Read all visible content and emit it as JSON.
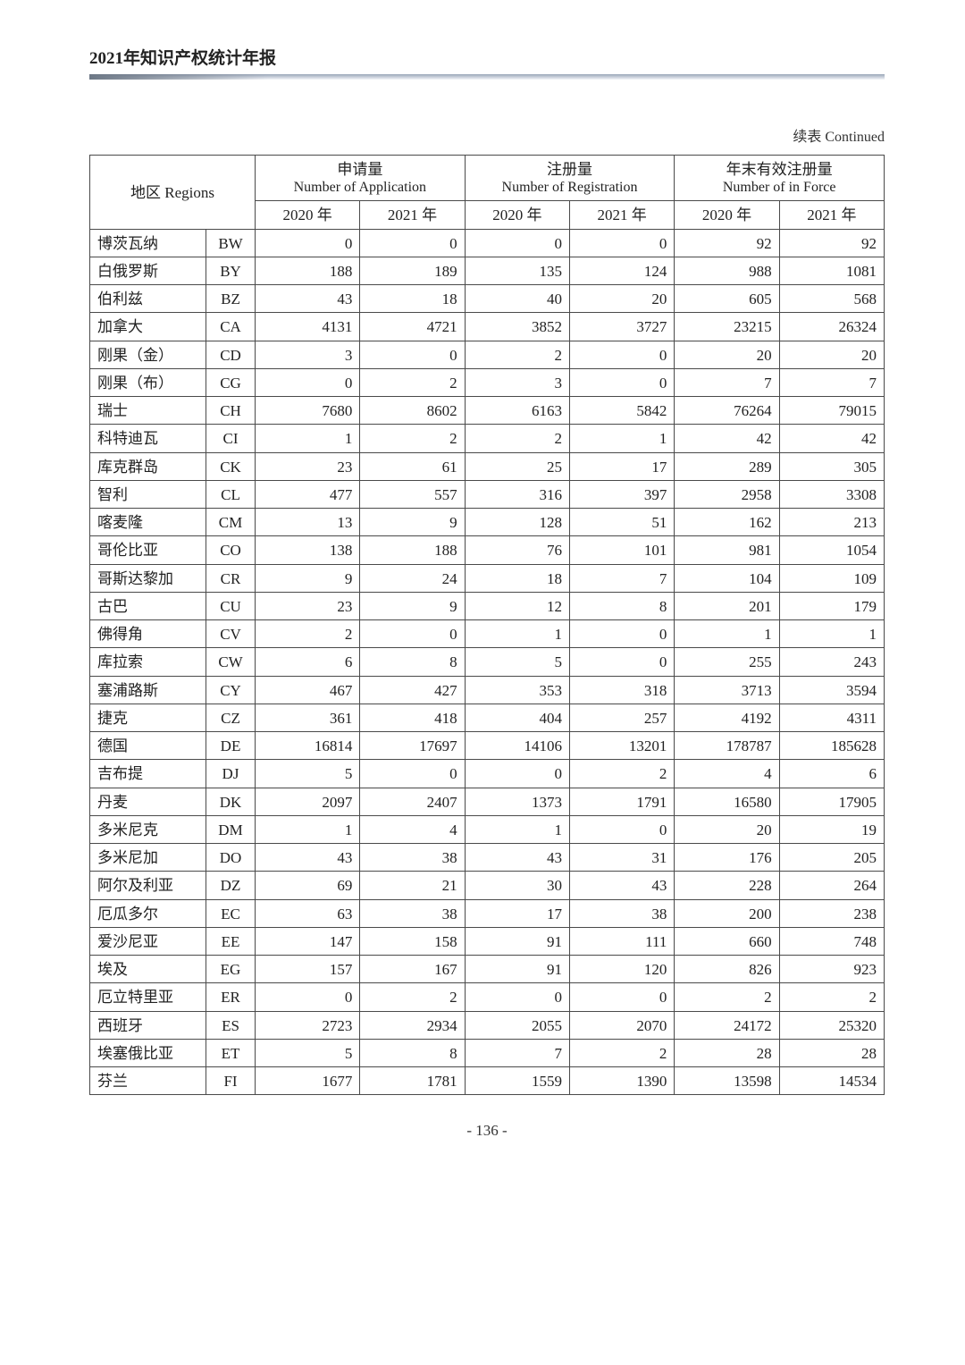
{
  "header": {
    "title": "2021年知识产权统计年报"
  },
  "continued_label": "续表 Continued",
  "table": {
    "header": {
      "regions_cn": "地区",
      "regions_en": "Regions",
      "application_cn": "申请量",
      "application_en": "Number of Application",
      "registration_cn": "注册量",
      "registration_en": "Number of Registration",
      "inforce_cn": "年末有效注册量",
      "inforce_en": "Number of in Force",
      "y2020": "2020 年",
      "y2021": "2021 年"
    },
    "rows": [
      {
        "name": "博茨瓦纳",
        "code": "BW",
        "app2020": "0",
        "app2021": "0",
        "reg2020": "0",
        "reg2021": "0",
        "force2020": "92",
        "force2021": "92"
      },
      {
        "name": "白俄罗斯",
        "code": "BY",
        "app2020": "188",
        "app2021": "189",
        "reg2020": "135",
        "reg2021": "124",
        "force2020": "988",
        "force2021": "1081"
      },
      {
        "name": "伯利兹",
        "code": "BZ",
        "app2020": "43",
        "app2021": "18",
        "reg2020": "40",
        "reg2021": "20",
        "force2020": "605",
        "force2021": "568"
      },
      {
        "name": "加拿大",
        "code": "CA",
        "app2020": "4131",
        "app2021": "4721",
        "reg2020": "3852",
        "reg2021": "3727",
        "force2020": "23215",
        "force2021": "26324"
      },
      {
        "name": "刚果（金）",
        "code": "CD",
        "app2020": "3",
        "app2021": "0",
        "reg2020": "2",
        "reg2021": "0",
        "force2020": "20",
        "force2021": "20"
      },
      {
        "name": "刚果（布）",
        "code": "CG",
        "app2020": "0",
        "app2021": "2",
        "reg2020": "3",
        "reg2021": "0",
        "force2020": "7",
        "force2021": "7"
      },
      {
        "name": "瑞士",
        "code": "CH",
        "app2020": "7680",
        "app2021": "8602",
        "reg2020": "6163",
        "reg2021": "5842",
        "force2020": "76264",
        "force2021": "79015"
      },
      {
        "name": "科特迪瓦",
        "code": "CI",
        "app2020": "1",
        "app2021": "2",
        "reg2020": "2",
        "reg2021": "1",
        "force2020": "42",
        "force2021": "42"
      },
      {
        "name": "库克群岛",
        "code": "CK",
        "app2020": "23",
        "app2021": "61",
        "reg2020": "25",
        "reg2021": "17",
        "force2020": "289",
        "force2021": "305"
      },
      {
        "name": "智利",
        "code": "CL",
        "app2020": "477",
        "app2021": "557",
        "reg2020": "316",
        "reg2021": "397",
        "force2020": "2958",
        "force2021": "3308"
      },
      {
        "name": "喀麦隆",
        "code": "CM",
        "app2020": "13",
        "app2021": "9",
        "reg2020": "128",
        "reg2021": "51",
        "force2020": "162",
        "force2021": "213"
      },
      {
        "name": "哥伦比亚",
        "code": "CO",
        "app2020": "138",
        "app2021": "188",
        "reg2020": "76",
        "reg2021": "101",
        "force2020": "981",
        "force2021": "1054"
      },
      {
        "name": "哥斯达黎加",
        "code": "CR",
        "app2020": "9",
        "app2021": "24",
        "reg2020": "18",
        "reg2021": "7",
        "force2020": "104",
        "force2021": "109"
      },
      {
        "name": "古巴",
        "code": "CU",
        "app2020": "23",
        "app2021": "9",
        "reg2020": "12",
        "reg2021": "8",
        "force2020": "201",
        "force2021": "179"
      },
      {
        "name": "佛得角",
        "code": "CV",
        "app2020": "2",
        "app2021": "0",
        "reg2020": "1",
        "reg2021": "0",
        "force2020": "1",
        "force2021": "1"
      },
      {
        "name": "库拉索",
        "code": "CW",
        "app2020": "6",
        "app2021": "8",
        "reg2020": "5",
        "reg2021": "0",
        "force2020": "255",
        "force2021": "243"
      },
      {
        "name": "塞浦路斯",
        "code": "CY",
        "app2020": "467",
        "app2021": "427",
        "reg2020": "353",
        "reg2021": "318",
        "force2020": "3713",
        "force2021": "3594"
      },
      {
        "name": "捷克",
        "code": "CZ",
        "app2020": "361",
        "app2021": "418",
        "reg2020": "404",
        "reg2021": "257",
        "force2020": "4192",
        "force2021": "4311"
      },
      {
        "name": "德国",
        "code": "DE",
        "app2020": "16814",
        "app2021": "17697",
        "reg2020": "14106",
        "reg2021": "13201",
        "force2020": "178787",
        "force2021": "185628"
      },
      {
        "name": "吉布提",
        "code": "DJ",
        "app2020": "5",
        "app2021": "0",
        "reg2020": "0",
        "reg2021": "2",
        "force2020": "4",
        "force2021": "6"
      },
      {
        "name": "丹麦",
        "code": "DK",
        "app2020": "2097",
        "app2021": "2407",
        "reg2020": "1373",
        "reg2021": "1791",
        "force2020": "16580",
        "force2021": "17905"
      },
      {
        "name": "多米尼克",
        "code": "DM",
        "app2020": "1",
        "app2021": "4",
        "reg2020": "1",
        "reg2021": "0",
        "force2020": "20",
        "force2021": "19"
      },
      {
        "name": "多米尼加",
        "code": "DO",
        "app2020": "43",
        "app2021": "38",
        "reg2020": "43",
        "reg2021": "31",
        "force2020": "176",
        "force2021": "205"
      },
      {
        "name": "阿尔及利亚",
        "code": "DZ",
        "app2020": "69",
        "app2021": "21",
        "reg2020": "30",
        "reg2021": "43",
        "force2020": "228",
        "force2021": "264"
      },
      {
        "name": "厄瓜多尔",
        "code": "EC",
        "app2020": "63",
        "app2021": "38",
        "reg2020": "17",
        "reg2021": "38",
        "force2020": "200",
        "force2021": "238"
      },
      {
        "name": "爱沙尼亚",
        "code": "EE",
        "app2020": "147",
        "app2021": "158",
        "reg2020": "91",
        "reg2021": "111",
        "force2020": "660",
        "force2021": "748"
      },
      {
        "name": "埃及",
        "code": "EG",
        "app2020": "157",
        "app2021": "167",
        "reg2020": "91",
        "reg2021": "120",
        "force2020": "826",
        "force2021": "923"
      },
      {
        "name": "厄立特里亚",
        "code": "ER",
        "app2020": "0",
        "app2021": "2",
        "reg2020": "0",
        "reg2021": "0",
        "force2020": "2",
        "force2021": "2"
      },
      {
        "name": "西班牙",
        "code": "ES",
        "app2020": "2723",
        "app2021": "2934",
        "reg2020": "2055",
        "reg2021": "2070",
        "force2020": "24172",
        "force2021": "25320"
      },
      {
        "name": "埃塞俄比亚",
        "code": "ET",
        "app2020": "5",
        "app2021": "8",
        "reg2020": "7",
        "reg2021": "2",
        "force2020": "28",
        "force2021": "28"
      },
      {
        "name": "芬兰",
        "code": "FI",
        "app2020": "1677",
        "app2021": "1781",
        "reg2020": "1559",
        "reg2021": "1390",
        "force2020": "13598",
        "force2021": "14534"
      }
    ]
  },
  "page_number": "- 136 -"
}
